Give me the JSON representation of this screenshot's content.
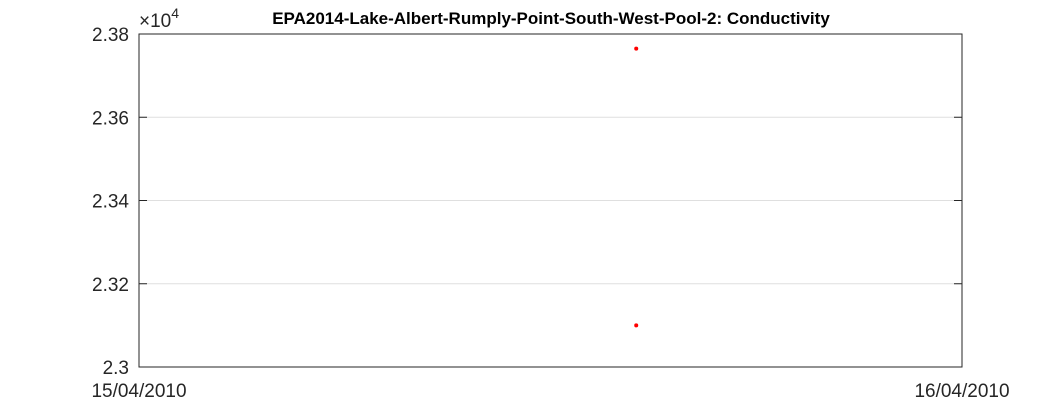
{
  "chart_data": {
    "type": "scatter",
    "title": "EPA2014-Lake-Albert-Rumply-Point-South-West-Pool-2: Conductivity",
    "xlabel": "",
    "ylabel": "",
    "x_tick_labels": [
      "15/04/2010",
      "16/04/2010"
    ],
    "xlim": [
      "15/04/2010 00:00",
      "16/04/2010 00:00"
    ],
    "y_multiplier": {
      "times": "×10",
      "exponent": "4"
    },
    "y_tick_labels": [
      "2.3",
      "2.32",
      "2.34",
      "2.36",
      "2.38"
    ],
    "y_ticks_scaled": [
      2.3,
      2.32,
      2.34,
      2.36,
      2.38
    ],
    "ylim": [
      23000,
      23800
    ],
    "y_scale_factor": 10000,
    "grid": "horizontal",
    "legend": "none",
    "marker_color": "#ff0000",
    "points": [
      {
        "x": "15/04/2010 14:30",
        "y": 23765
      },
      {
        "x": "15/04/2010 14:30",
        "y": 23100
      }
    ]
  }
}
